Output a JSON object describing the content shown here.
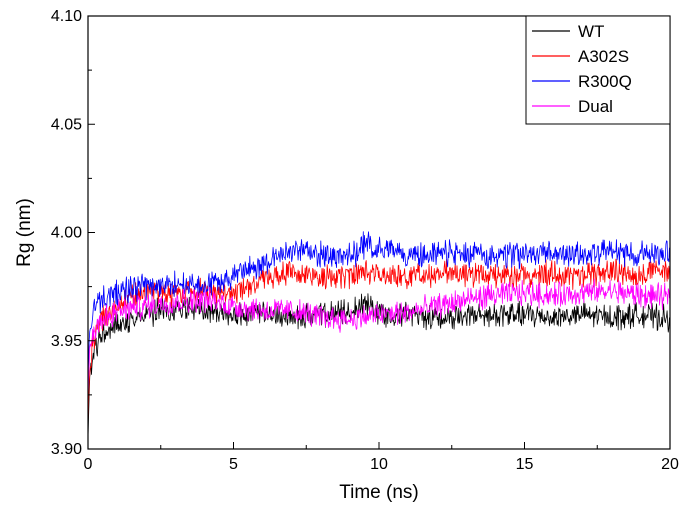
{
  "chart_data": {
    "type": "line",
    "xlabel": "Time (ns)",
    "ylabel": "Rg (nm)",
    "xlim": [
      0,
      20
    ],
    "ylim": [
      3.9,
      4.1
    ],
    "x_ticks": [
      0,
      5,
      10,
      15,
      20
    ],
    "x_tick_labels": [
      "0",
      "5",
      "10",
      "15",
      "20"
    ],
    "y_ticks": [
      3.9,
      3.95,
      4.0,
      4.05,
      4.1
    ],
    "y_tick_labels": [
      "3.90",
      "3.95",
      "4.00",
      "4.05",
      "4.10"
    ],
    "grid": false,
    "legend_position": "top-right",
    "series": [
      {
        "name": "WT",
        "color": "#000000",
        "noise": 0.0045,
        "x": [
          0,
          0.05,
          0.15,
          0.3,
          0.5,
          1,
          1.5,
          2,
          3,
          4,
          5,
          6,
          7,
          8,
          9,
          9.5,
          10,
          11,
          12,
          13,
          14,
          15,
          16,
          17,
          18,
          19,
          20
        ],
        "y": [
          3.905,
          3.93,
          3.942,
          3.948,
          3.953,
          3.958,
          3.96,
          3.962,
          3.965,
          3.964,
          3.962,
          3.962,
          3.961,
          3.962,
          3.963,
          3.968,
          3.963,
          3.962,
          3.961,
          3.961,
          3.962,
          3.962,
          3.961,
          3.962,
          3.961,
          3.962,
          3.96
        ]
      },
      {
        "name": "A302S",
        "color": "#ff0000",
        "noise": 0.0045,
        "x": [
          0,
          0.05,
          0.15,
          0.3,
          0.5,
          1,
          1.5,
          2,
          3,
          4,
          5,
          6,
          7,
          8,
          9,
          9.5,
          10,
          11,
          12,
          13,
          14,
          15,
          16,
          17,
          18,
          19,
          20
        ],
        "y": [
          3.912,
          3.935,
          3.948,
          3.955,
          3.96,
          3.966,
          3.97,
          3.973,
          3.972,
          3.973,
          3.972,
          3.978,
          3.982,
          3.98,
          3.979,
          3.982,
          3.981,
          3.98,
          3.981,
          3.981,
          3.98,
          3.981,
          3.981,
          3.98,
          3.982,
          3.981,
          3.982
        ]
      },
      {
        "name": "R300Q",
        "color": "#0000ff",
        "noise": 0.0048,
        "x": [
          0,
          0.05,
          0.15,
          0.3,
          0.5,
          1,
          1.5,
          2,
          3,
          4,
          5,
          6,
          7,
          8,
          9,
          9.5,
          10,
          11,
          12,
          13,
          14,
          15,
          16,
          17,
          18,
          19,
          20
        ],
        "y": [
          3.93,
          3.955,
          3.962,
          3.967,
          3.969,
          3.972,
          3.974,
          3.975,
          3.976,
          3.975,
          3.98,
          3.986,
          3.992,
          3.99,
          3.989,
          3.994,
          3.993,
          3.99,
          3.99,
          3.99,
          3.989,
          3.99,
          3.99,
          3.99,
          3.991,
          3.99,
          3.992
        ]
      },
      {
        "name": "Dual",
        "color": "#ff00ff",
        "noise": 0.0045,
        "x": [
          0,
          0.05,
          0.15,
          0.3,
          0.5,
          1,
          1.5,
          2,
          3,
          4,
          5,
          6,
          7,
          8,
          9,
          9.5,
          10,
          11,
          12,
          13,
          14,
          15,
          16,
          17,
          18,
          19,
          20
        ],
        "y": [
          3.925,
          3.942,
          3.952,
          3.958,
          3.96,
          3.963,
          3.965,
          3.966,
          3.968,
          3.969,
          3.966,
          3.964,
          3.964,
          3.961,
          3.96,
          3.961,
          3.962,
          3.963,
          3.966,
          3.969,
          3.971,
          3.972,
          3.971,
          3.972,
          3.973,
          3.971,
          3.97
        ]
      }
    ]
  }
}
